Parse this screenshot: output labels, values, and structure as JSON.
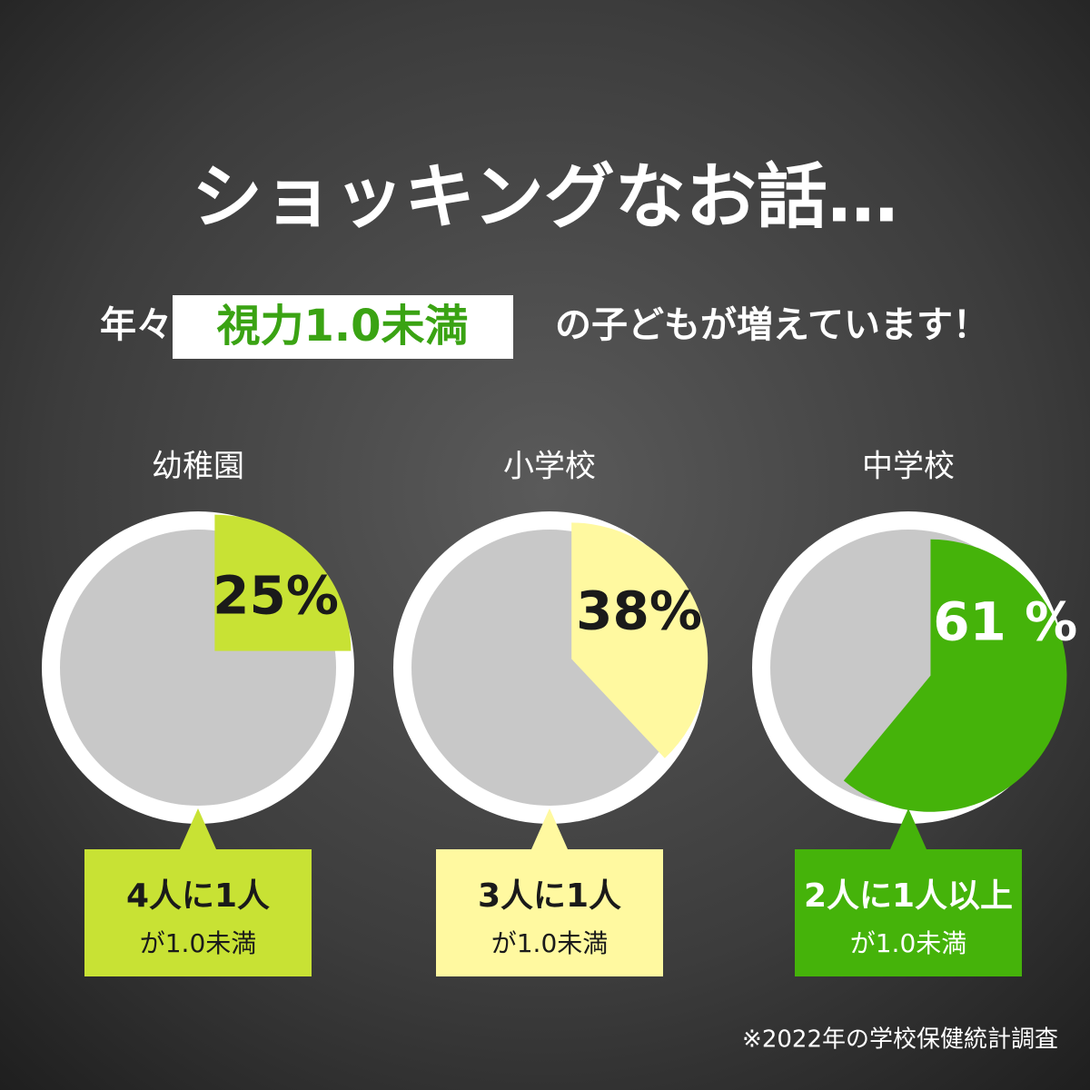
{
  "title": "ショッキングなお話…",
  "subtitle": {
    "before": "年々",
    "highlight": "視力1.0未満",
    "after": "の子どもが増えています！"
  },
  "footnote": "※2022年の学校保健統計調査",
  "chart_data": [
    {
      "type": "pie",
      "title": "幼稚園",
      "values": [
        25
      ],
      "value_labels": [
        "25%"
      ],
      "color": "#c8e234",
      "text_color": "#1a1a1a",
      "callout": {
        "main": "4人に1人",
        "sub": "が1.0未満"
      }
    },
    {
      "type": "pie",
      "title": "小学校",
      "values": [
        38
      ],
      "value_labels": [
        "38%"
      ],
      "color": "#fff9a0",
      "text_color": "#1a1a1a",
      "callout": {
        "main": "3人に1人",
        "sub": "が1.0未満"
      }
    },
    {
      "type": "pie",
      "title": "中学校",
      "values": [
        61
      ],
      "value_labels": [
        "61 %"
      ],
      "color": "#45b30a",
      "text_color": "#ffffff",
      "callout": {
        "main": "2人に1人以上",
        "sub": "が1.0未満"
      }
    }
  ]
}
